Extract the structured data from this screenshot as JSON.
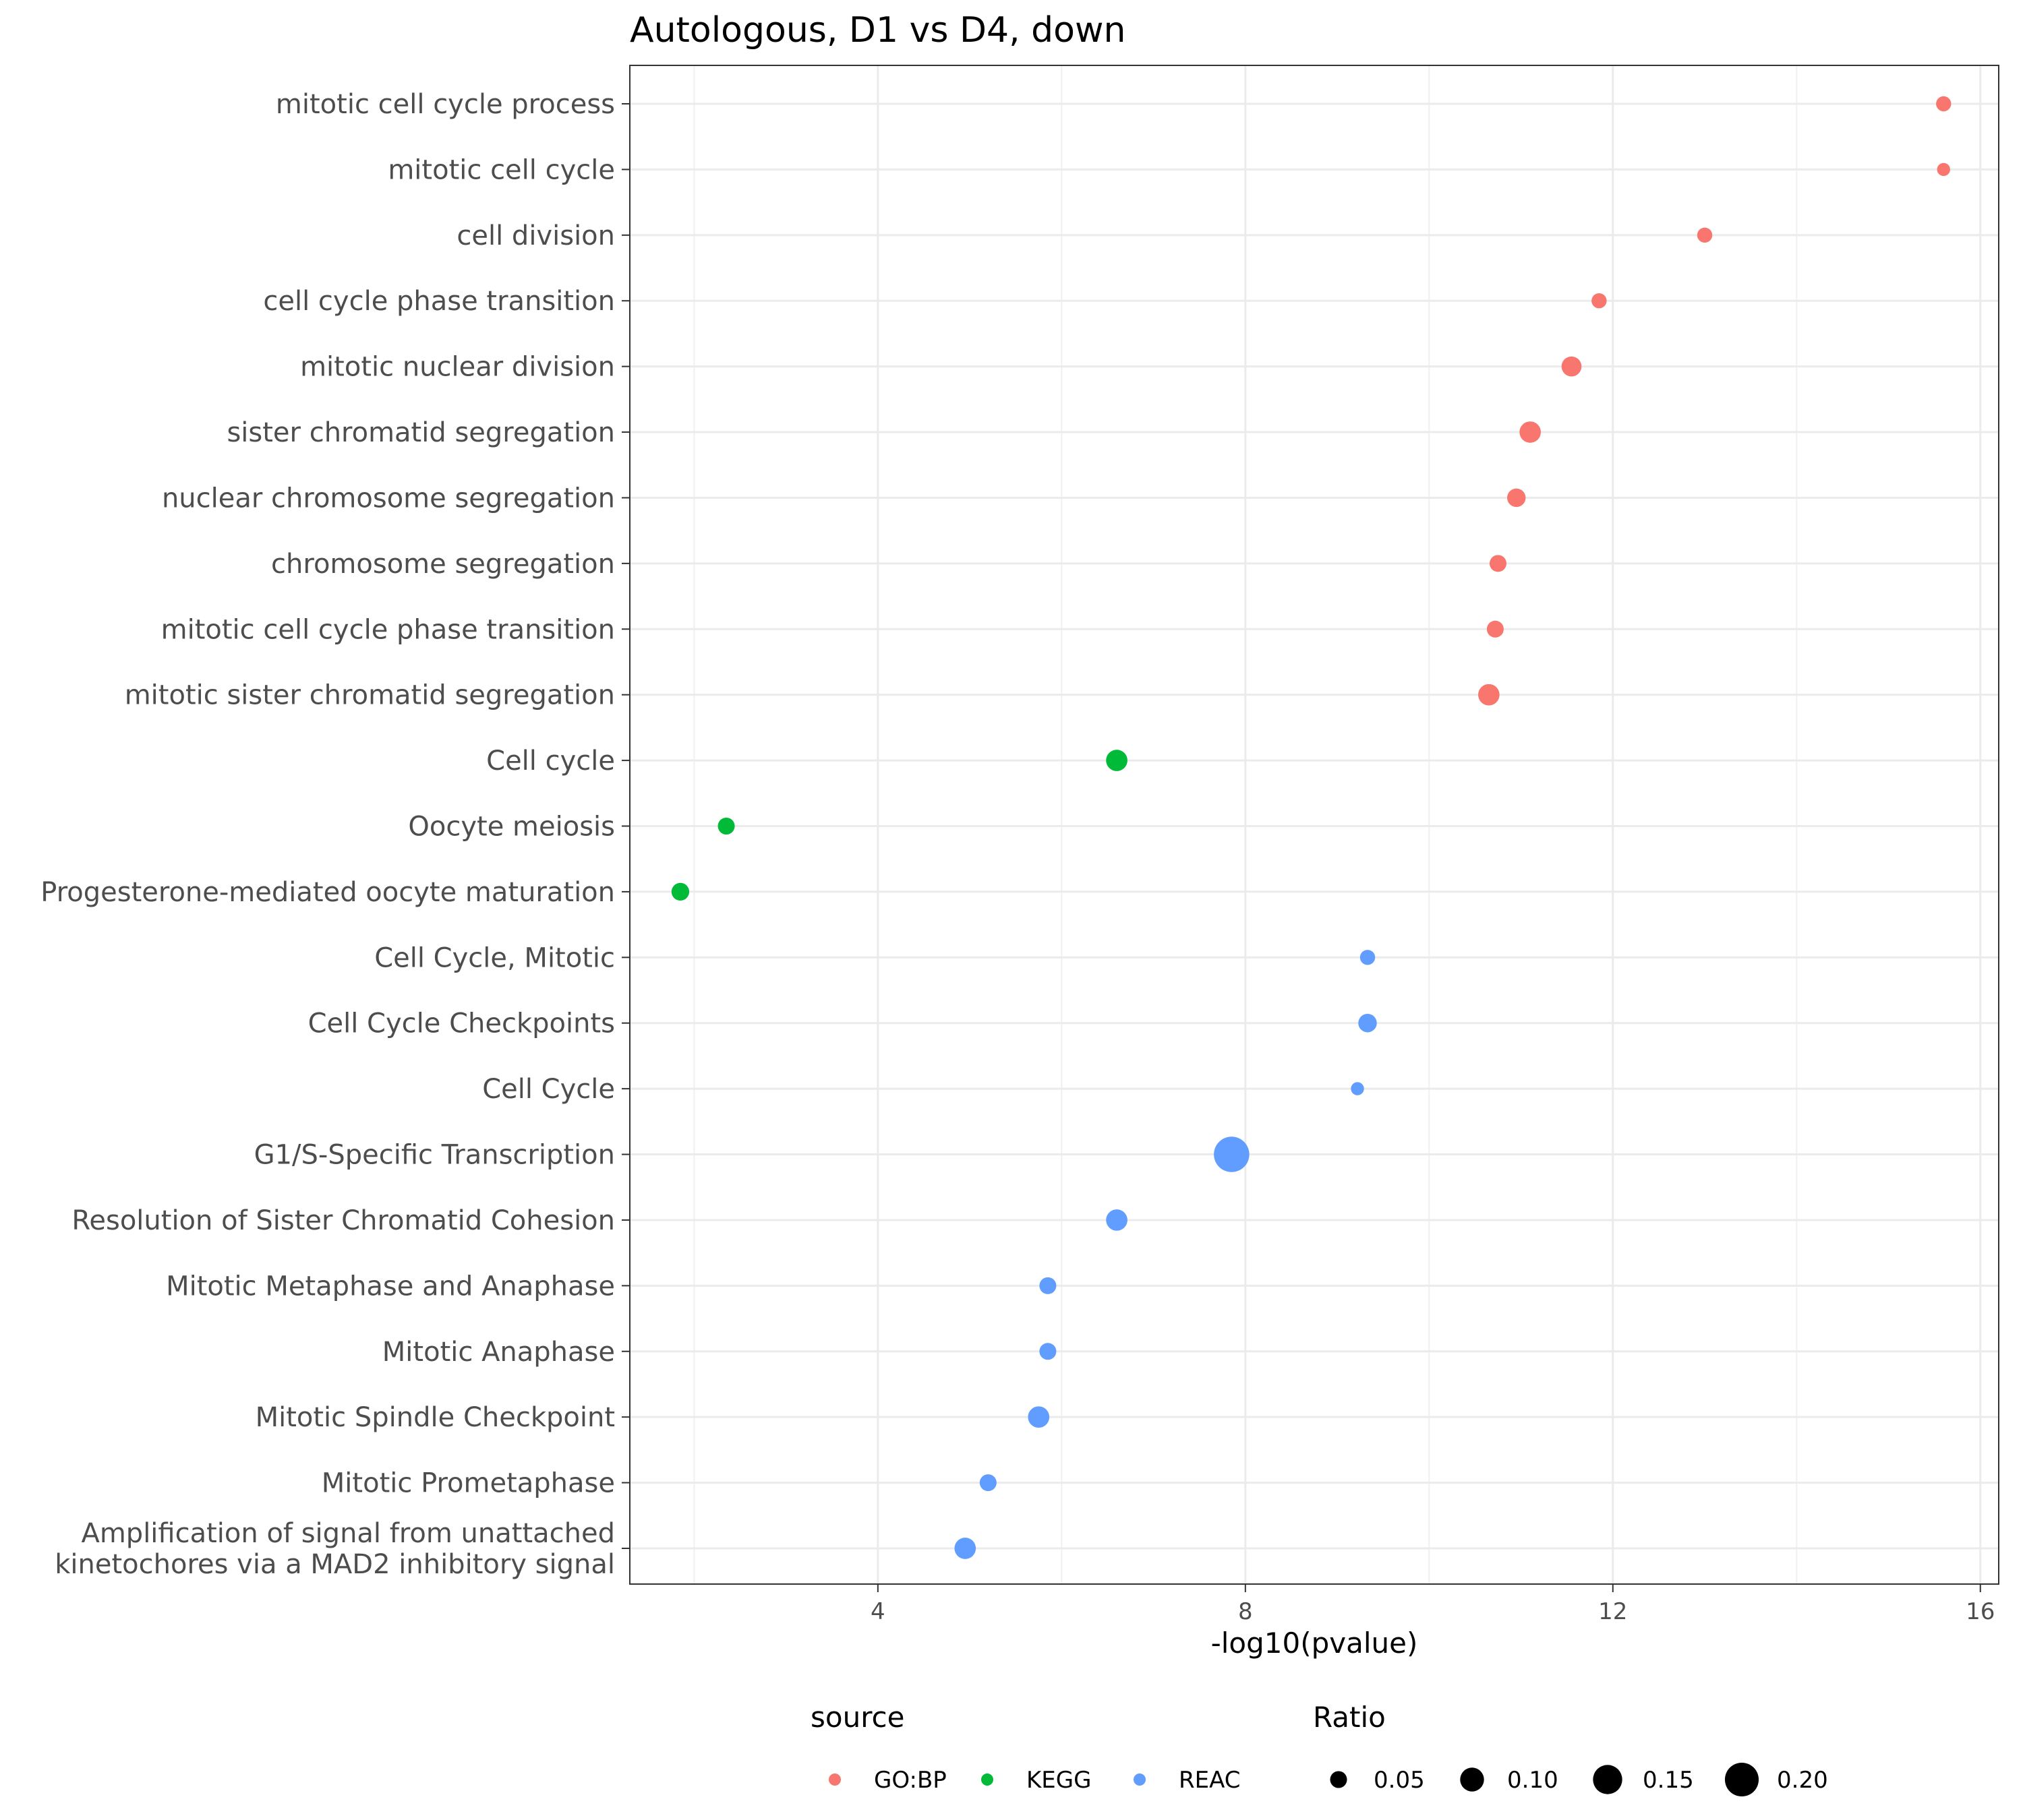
{
  "chart_data": {
    "type": "scatter",
    "title": "Autologous, D1 vs D4, down",
    "xlabel": "-log10(pvalue)",
    "ylabel": "",
    "xlim": [
      1.3,
      16.2
    ],
    "xticks": [
      4,
      8,
      12,
      16
    ],
    "x_minor_gridlines": [
      2,
      6,
      10,
      14
    ],
    "grid": true,
    "categories": [
      "mitotic cell cycle process",
      "mitotic cell cycle",
      "cell division",
      "cell cycle phase transition",
      "mitotic nuclear division",
      "sister chromatid segregation",
      "nuclear chromosome segregation",
      "chromosome segregation",
      "mitotic cell cycle phase transition",
      "mitotic sister chromatid segregation",
      "Cell cycle",
      "Oocyte meiosis",
      "Progesterone-mediated oocyte maturation",
      "Cell Cycle, Mitotic",
      "Cell Cycle Checkpoints",
      "Cell Cycle",
      "G1/S-Specific Transcription",
      "Resolution of Sister Chromatid Cohesion",
      "Mitotic Metaphase and Anaphase",
      "Mitotic Anaphase",
      "Mitotic Spindle Checkpoint",
      "Mitotic Prometaphase",
      "Amplification of signal from unattached\nkinetochores via a MAD2 inhibitory signal"
    ],
    "points": [
      {
        "category": "mitotic cell cycle process",
        "x": 15.6,
        "ratio": 0.04,
        "source": "GO:BP"
      },
      {
        "category": "mitotic cell cycle",
        "x": 15.6,
        "ratio": 0.03,
        "source": "GO:BP"
      },
      {
        "category": "cell division",
        "x": 13.0,
        "ratio": 0.04,
        "source": "GO:BP"
      },
      {
        "category": "cell cycle phase transition",
        "x": 11.85,
        "ratio": 0.04,
        "source": "GO:BP"
      },
      {
        "category": "mitotic nuclear division",
        "x": 11.55,
        "ratio": 0.07,
        "source": "GO:BP"
      },
      {
        "category": "sister chromatid segregation",
        "x": 11.1,
        "ratio": 0.08,
        "source": "GO:BP"
      },
      {
        "category": "nuclear chromosome segregation",
        "x": 10.95,
        "ratio": 0.06,
        "source": "GO:BP"
      },
      {
        "category": "chromosome segregation",
        "x": 10.75,
        "ratio": 0.05,
        "source": "GO:BP"
      },
      {
        "category": "mitotic cell cycle phase transition",
        "x": 10.72,
        "ratio": 0.05,
        "source": "GO:BP"
      },
      {
        "category": "mitotic sister chromatid segregation",
        "x": 10.65,
        "ratio": 0.08,
        "source": "GO:BP"
      },
      {
        "category": "Cell cycle",
        "x": 6.6,
        "ratio": 0.08,
        "source": "KEGG"
      },
      {
        "category": "Oocyte meiosis",
        "x": 2.35,
        "ratio": 0.05,
        "source": "KEGG"
      },
      {
        "category": "Progesterone-mediated oocyte maturation",
        "x": 1.85,
        "ratio": 0.055,
        "source": "KEGG"
      },
      {
        "category": "Cell Cycle, Mitotic",
        "x": 9.33,
        "ratio": 0.04,
        "source": "REAC"
      },
      {
        "category": "Cell Cycle Checkpoints",
        "x": 9.33,
        "ratio": 0.06,
        "source": "REAC"
      },
      {
        "category": "Cell Cycle",
        "x": 9.22,
        "ratio": 0.03,
        "source": "REAC"
      },
      {
        "category": "G1/S-Specific Transcription",
        "x": 7.85,
        "ratio": 0.22,
        "source": "REAC"
      },
      {
        "category": "Resolution of Sister Chromatid Cohesion",
        "x": 6.6,
        "ratio": 0.08,
        "source": "REAC"
      },
      {
        "category": "Mitotic Metaphase and Anaphase",
        "x": 5.85,
        "ratio": 0.05,
        "source": "REAC"
      },
      {
        "category": "Mitotic Anaphase",
        "x": 5.85,
        "ratio": 0.05,
        "source": "REAC"
      },
      {
        "category": "Mitotic Spindle Checkpoint",
        "x": 5.75,
        "ratio": 0.08,
        "source": "REAC"
      },
      {
        "category": "Mitotic Prometaphase",
        "x": 5.2,
        "ratio": 0.05,
        "source": "REAC"
      },
      {
        "category": "Amplification of signal from unattached\nkinetochores via a MAD2 inhibitory signal",
        "x": 4.95,
        "ratio": 0.08,
        "source": "REAC"
      }
    ],
    "legend": {
      "placement": "bottom",
      "source": {
        "title": "source",
        "entries": [
          {
            "label": "GO:BP",
            "color": "#f8766d"
          },
          {
            "label": "KEGG",
            "color": "#00ba38"
          },
          {
            "label": "REAC",
            "color": "#619cff"
          }
        ]
      },
      "ratio": {
        "title": "Ratio",
        "entries": [
          {
            "label": "0.05",
            "value": 0.05
          },
          {
            "label": "0.10",
            "value": 0.1
          },
          {
            "label": "0.15",
            "value": 0.15
          },
          {
            "label": "0.20",
            "value": 0.2
          }
        ]
      }
    }
  }
}
